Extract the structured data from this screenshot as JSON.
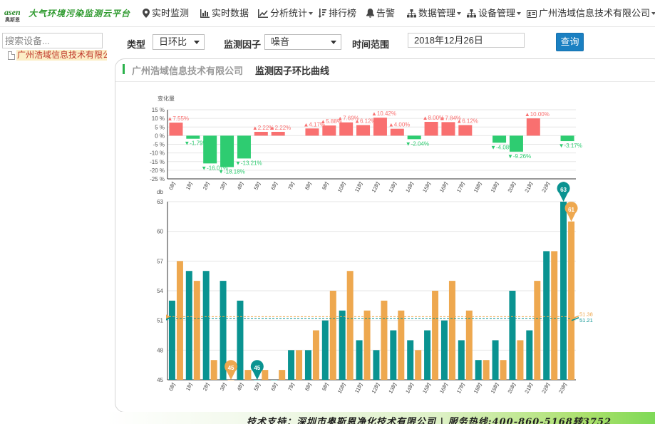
{
  "app": {
    "logo_mark": "asen",
    "logo_mark_sub": "奥斯恩",
    "slogan": "大气环境污染监测云平台"
  },
  "nav": {
    "items": [
      {
        "label": "实时监测",
        "icon": "map-marker-icon"
      },
      {
        "label": "实时数据",
        "icon": "bar-chart-icon"
      },
      {
        "label": "分析统计",
        "icon": "line-chart-icon",
        "dropdown": true
      },
      {
        "label": "排行榜",
        "icon": "sort-icon"
      },
      {
        "label": "告警",
        "icon": "bell-icon"
      },
      {
        "label": "数据管理",
        "icon": "sitemap-icon",
        "dropdown": true
      },
      {
        "label": "设备管理",
        "icon": "sitemap-icon",
        "dropdown": true
      },
      {
        "label": "广州浩域信息技术有限公司",
        "icon": "id-card-icon",
        "dropdown": true
      }
    ]
  },
  "sidebar": {
    "search_placeholder": "搜索设备...",
    "tree_root": "广州浩域信息技术有限公司"
  },
  "toolbar": {
    "type_label": "类型",
    "type_value": "日环比",
    "factor_label": "监测因子",
    "factor_value": "噪音",
    "range_label": "时间范围",
    "date_value": "2018年12月26日",
    "query_label": "查询"
  },
  "panel": {
    "company": "广州浩域信息技术有限公司",
    "title": "监测因子环比曲线"
  },
  "footer": {
    "text": "技术支持：深圳市奥斯恩净化技术有限公司 | 服务热线:400-860-5168转3752"
  },
  "colors": {
    "up": "#f97070",
    "down": "#2ecc71",
    "today": "#0a9391",
    "yesterday": "#eea84f",
    "accent": "#1a80c2"
  },
  "chart_data": [
    {
      "type": "bar",
      "ylabel": "变化量",
      "yunit": "%",
      "ylim": [
        -25,
        15
      ],
      "yticks": [
        15,
        10,
        5,
        0,
        -5,
        -10,
        -15,
        -20,
        -25
      ],
      "categories": [
        "0时",
        "1时",
        "2时",
        "3时",
        "4时",
        "5时",
        "6时",
        "7时",
        "8时",
        "9时",
        "10时",
        "11时",
        "12时",
        "13时",
        "14时",
        "15时",
        "16时",
        "17时",
        "18时",
        "19时",
        "20时",
        "21时",
        "22时",
        "23时"
      ],
      "values": [
        7.55,
        -1.79,
        -16.07,
        -18.18,
        -13.21,
        2.22,
        2.22,
        null,
        4.17,
        5.88,
        7.69,
        6.12,
        10.42,
        4.0,
        -2.04,
        8.0,
        7.84,
        6.12,
        null,
        -4.08,
        -9.26,
        10.0,
        null,
        -3.17
      ],
      "labels": [
        "▲7.55%",
        "▼-1.79%",
        "▼-16.07%",
        "▼-18.18%",
        "▼-13.21%",
        "▲2.22%",
        "▲2.22%",
        "",
        "▲4.17%",
        "▲5.88%",
        "▲7.69%",
        "▲6.12%",
        "▲10.42%",
        "▲4.00%",
        "▼-2.04%",
        "▲8.00%",
        "▲7.84%",
        "▲6.12%",
        "",
        "▼-4.08%",
        "▼-9.26%",
        "▲10.00%",
        "",
        "▼-3.17%"
      ],
      "grid": true
    },
    {
      "type": "bar",
      "ylabel": "db",
      "ylim": [
        45,
        63
      ],
      "yticks": [
        63,
        60,
        57,
        54,
        51,
        48,
        45
      ],
      "categories": [
        "0时",
        "1时",
        "2时",
        "3时",
        "4时",
        "5时",
        "6时",
        "7时",
        "8时",
        "9时",
        "10时",
        "11时",
        "12时",
        "13时",
        "14时",
        "15时",
        "16时",
        "17时",
        "18时",
        "19时",
        "20时",
        "21时",
        "22时",
        "23时"
      ],
      "series": [
        {
          "values": [
            53,
            56,
            56,
            55,
            53,
            45,
            45,
            48,
            48,
            51,
            52,
            49,
            48,
            50,
            49,
            50,
            51,
            49,
            47,
            49,
            54,
            50,
            58,
            63
          ]
        },
        {
          "values": [
            57,
            55,
            47,
            45,
            46,
            46,
            46,
            48,
            50,
            54,
            56,
            52,
            53,
            52,
            48,
            54,
            55,
            52,
            47,
            47,
            49,
            55,
            58,
            61
          ]
        }
      ],
      "max_pins": [
        {
          "series": 0,
          "index": 23,
          "label": "63"
        },
        {
          "series": 1,
          "index": 23,
          "label": "61"
        }
      ],
      "min_pins": [
        {
          "series": 1,
          "index": 3,
          "label": "45"
        },
        {
          "series": 0,
          "index": 5,
          "label": "45"
        }
      ],
      "mark_lines": [
        {
          "series": 0,
          "value": 51.21,
          "label": "51.21"
        },
        {
          "series": 1,
          "value": 51.38,
          "label": "51.38"
        }
      ],
      "grid": true
    }
  ]
}
